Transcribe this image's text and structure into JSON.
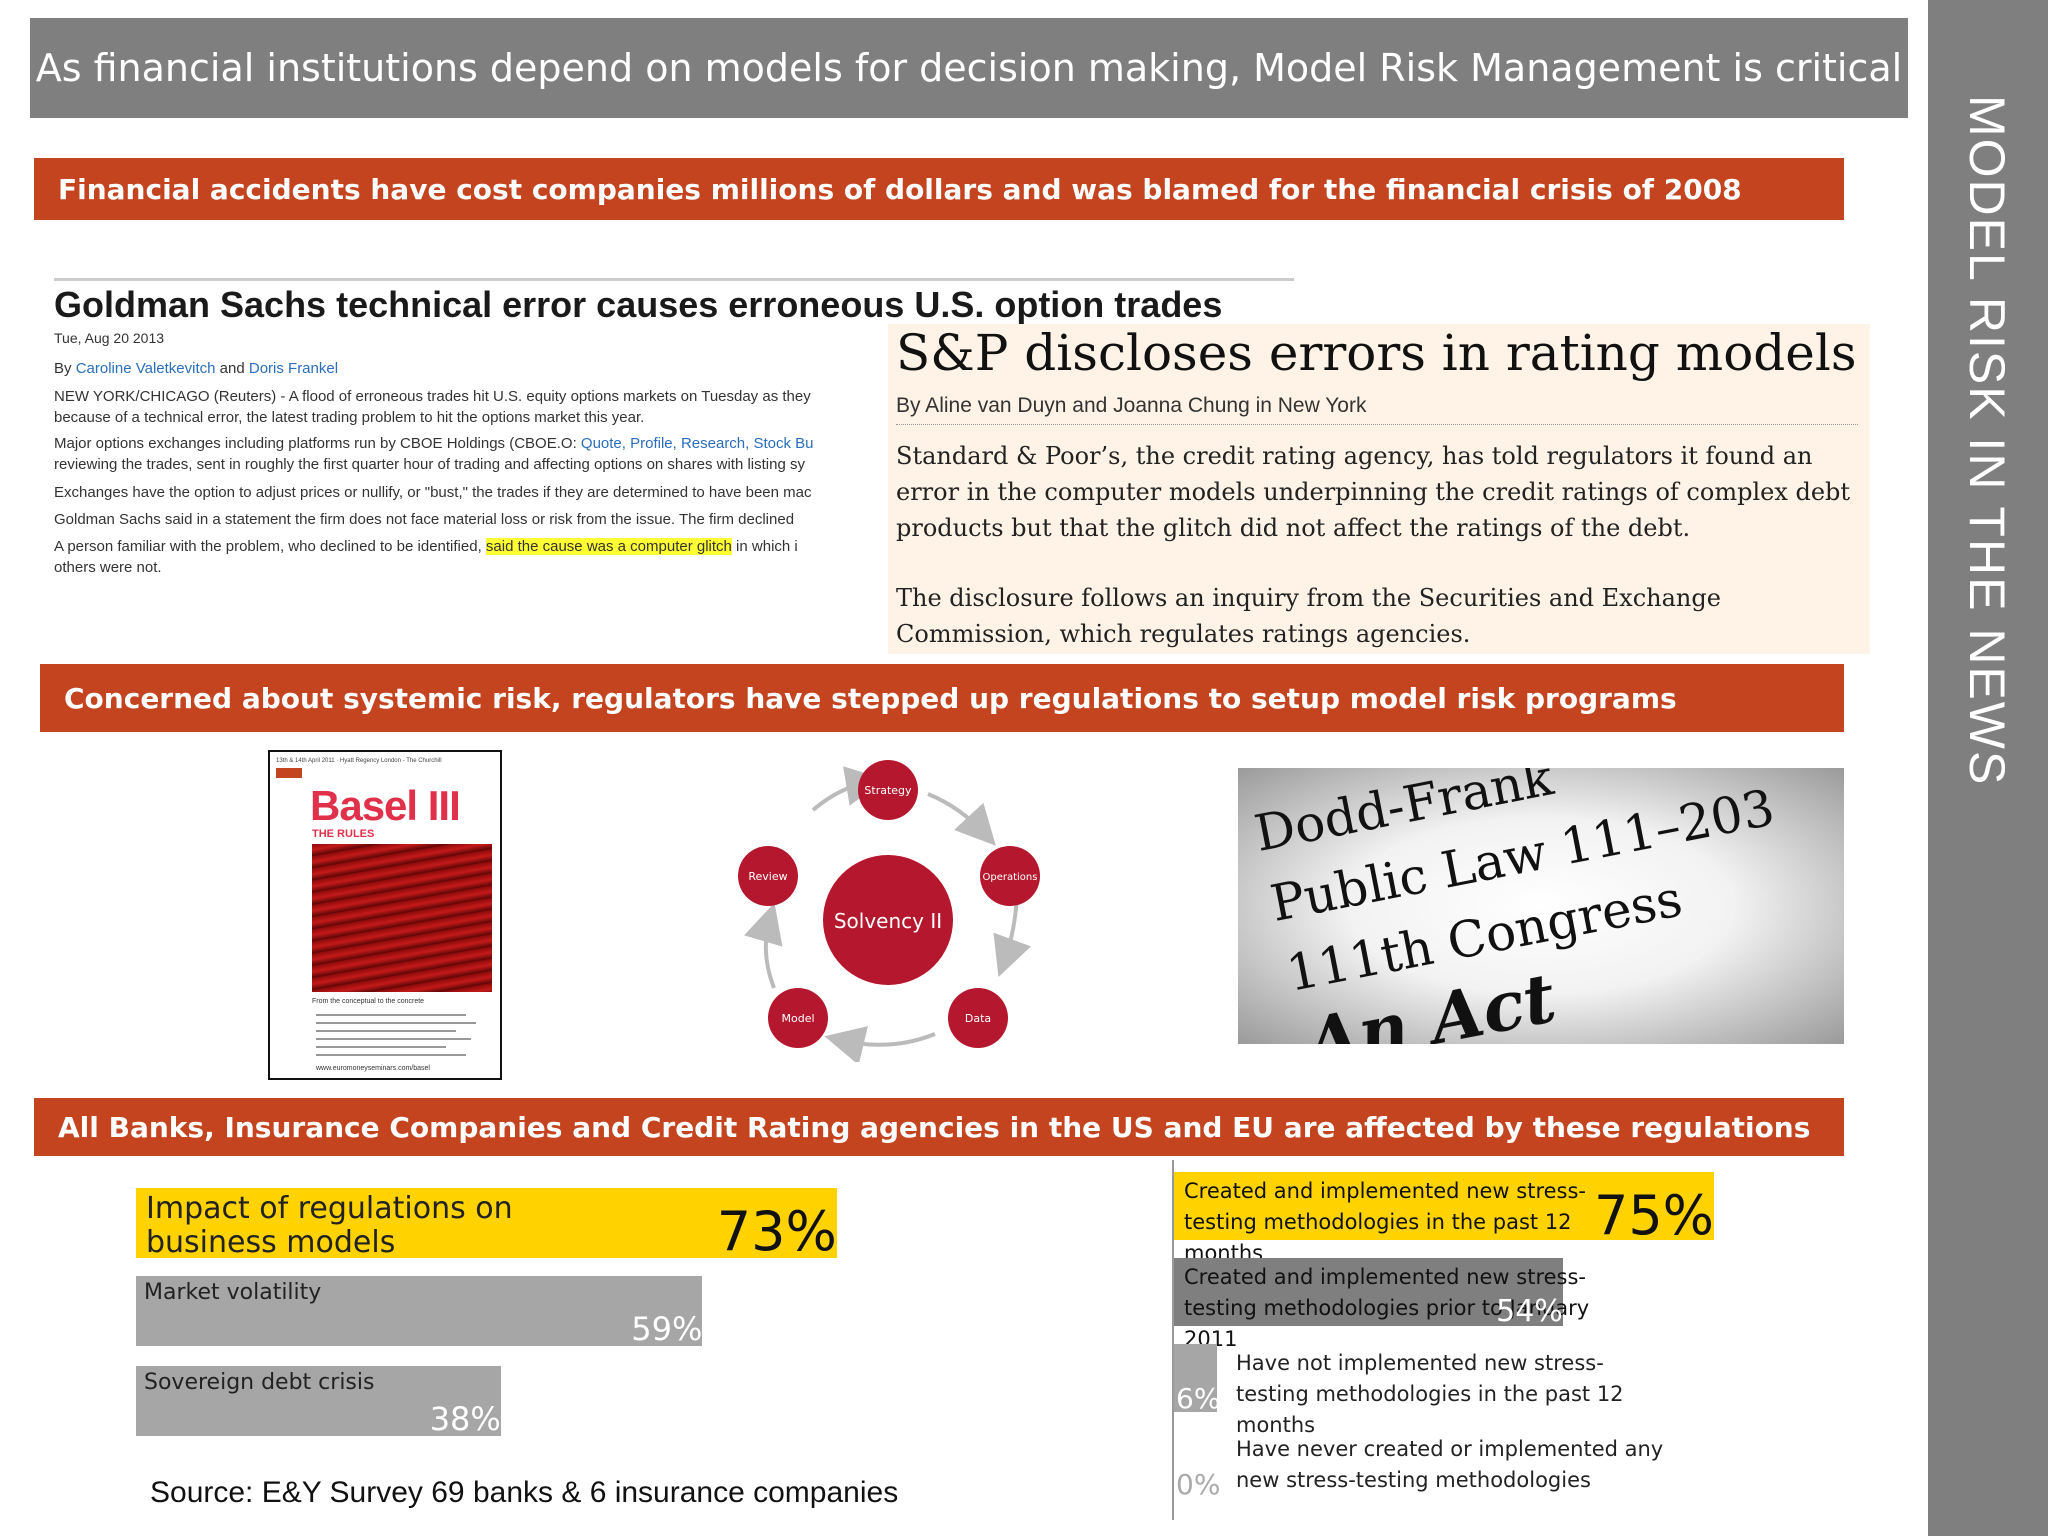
{
  "title": "As financial institutions depend on models for decision making, Model Risk Management is critical",
  "side_label": "MODEL RISK IN THE NEWS",
  "sections": {
    "s1": "Financial accidents have cost companies millions of dollars and was blamed for the financial crisis of 2008",
    "s2": "Concerned about systemic risk, regulators have stepped up regulations to setup model risk programs",
    "s3": "All Banks, Insurance Companies and Credit Rating agencies in the US and EU are affected by these regulations"
  },
  "gs_article": {
    "headline": "Goldman Sachs technical error causes erroneous U.S. option trades",
    "date": "Tue, Aug 20 2013",
    "by": "By",
    "and": "and",
    "author1": "Caroline Valetkevitch",
    "author2": "Doris Frankel",
    "p1": "NEW YORK/CHICAGO (Reuters) - A flood of erroneous trades hit U.S. equity options markets on Tuesday as they",
    "p1b": "because of a technical error, the latest trading problem to hit the options market this year.",
    "p2a": "Major options exchanges including platforms run by CBOE Holdings (CBOE.O: ",
    "p2links": "Quote, Profile, Research, Stock Bu",
    "p2b": "reviewing the trades, sent in roughly the first quarter hour of trading and affecting options on shares with listing sy",
    "p3": "Exchanges have the option to adjust prices or nullify, or \"bust,\" the trades if they are determined to have been mac",
    "p4": "Goldman Sachs said in a statement the firm does not face material loss or risk from the issue. The firm declined",
    "p5a": "A person familiar with the problem, who declined to be identified, ",
    "p5hl": "said the cause was a computer glitch",
    "p5b": " in which i",
    "p5c": "others were not."
  },
  "sp_article": {
    "headline": "S&P discloses errors in rating models",
    "byline": "By Aline van Duyn and Joanna Chung in New York",
    "p1": "Standard & Poor’s, the credit rating agency, has told regulators it found an error in the computer models underpinning the credit ratings of complex debt products but that the glitch did not affect the ratings of the debt.",
    "p2": "The disclosure follows an inquiry from the Securities and Exchange Commission, which regulates ratings agencies."
  },
  "basel": {
    "top_text": "13th & 14th April 2011 · Hyatt Regency London - The Churchill",
    "logo": "Basel III",
    "sub": "THE RULES",
    "tagline": "From the conceptual to the concrete",
    "url": "www.euromoneyseminars.com/basel"
  },
  "solvency": {
    "center": "Solvency II",
    "nodes": [
      "Strategy",
      "Operations",
      "Data",
      "Model",
      "Review"
    ]
  },
  "dodd_frank": {
    "lines": [
      "Dodd-Frank",
      "Public Law 111–203",
      "111th Congress",
      "An Act"
    ]
  },
  "source": "Source: E&Y Survey 69 banks & 6 insurance companies",
  "colors": {
    "accent": "#c4441f",
    "yellow": "#ffd200",
    "gray_bar": "#a6a6a6",
    "dark_bar": "#7f7f7f",
    "banner": "#7f7f7f"
  },
  "chart_data": [
    {
      "type": "bar",
      "orientation": "horizontal",
      "categories": [
        "Impact of regulations on business models",
        "Market volatility",
        "Sovereign debt crisis"
      ],
      "values": [
        73,
        59,
        38
      ],
      "value_labels": [
        "73%",
        "59%",
        "38%"
      ],
      "xlim": [
        0,
        100
      ]
    },
    {
      "type": "bar",
      "orientation": "horizontal",
      "categories": [
        "Created and implemented new stress-testing methodologies in the past 12 months",
        "Created and implemented new stress-testing methodologies prior to January 2011",
        "Have not implemented new stress-testing methodologies in the past 12 months",
        "Have never created or implemented any new stress-testing methodologies"
      ],
      "values": [
        75,
        54,
        6,
        0
      ],
      "value_labels": [
        "75%",
        "54%",
        "6%",
        "0%"
      ],
      "xlim": [
        0,
        100
      ]
    }
  ]
}
